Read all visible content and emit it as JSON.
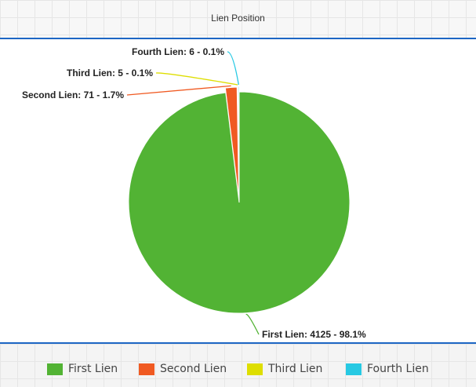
{
  "header": {
    "title": "Lien Position"
  },
  "chart_data": {
    "type": "pie",
    "slices": [
      {
        "name": "First Lien",
        "value": 4125,
        "percent": "98.1%",
        "color": "#52b334",
        "label": "First Lien: 4125 - 98.1%"
      },
      {
        "name": "Second Lien",
        "value": 71,
        "percent": "1.7%",
        "color": "#f05a22",
        "label": "Second Lien: 71 - 1.7%"
      },
      {
        "name": "Third Lien",
        "value": 5,
        "percent": "0.1%",
        "color": "#dede00",
        "label": "Third Lien: 5 - 0.1%"
      },
      {
        "name": "Fourth Lien",
        "value": 6,
        "percent": "0.1%",
        "color": "#27c9e3",
        "label": "Fourth Lien: 6 - 0.1%"
      }
    ],
    "legend_position": "bottom"
  },
  "legend": {
    "items": [
      {
        "label": "First Lien",
        "color": "#52b334"
      },
      {
        "label": "Second Lien",
        "color": "#f05a22"
      },
      {
        "label": "Third Lien",
        "color": "#dede00"
      },
      {
        "label": "Fourth Lien",
        "color": "#27c9e3"
      }
    ]
  }
}
